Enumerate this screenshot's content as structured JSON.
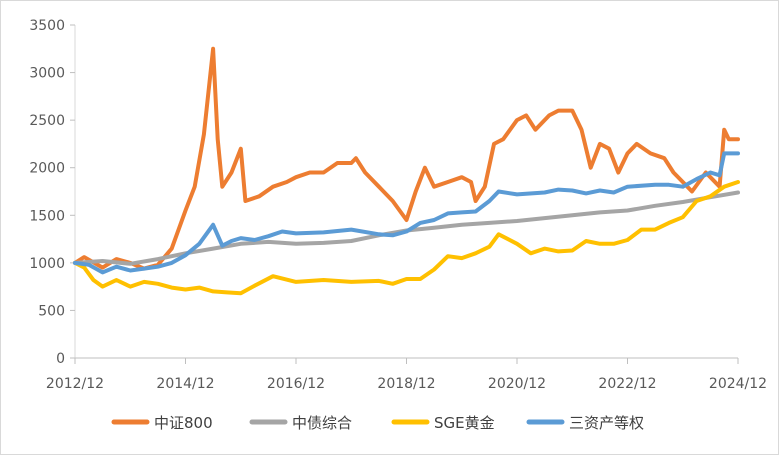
{
  "chart_data": {
    "type": "line",
    "title": "",
    "xlabel": "",
    "ylabel": "",
    "ylim": [
      0,
      3500
    ],
    "yticks": [
      0,
      500,
      1000,
      1500,
      2000,
      2500,
      3000,
      3500
    ],
    "xlim": [
      "2012/12",
      "2024/12"
    ],
    "xtick_labels": [
      "2012/12",
      "2014/12",
      "2016/12",
      "2018/12",
      "2020/12",
      "2022/12",
      "2024/12"
    ],
    "grid": "horizontal",
    "legend_position": "bottom",
    "series": [
      {
        "name": "中证800",
        "color": "#ED7D31",
        "points": [
          [
            "2012/12",
            1000
          ],
          [
            "2013/02",
            1060
          ],
          [
            "2013/06",
            950
          ],
          [
            "2013/09",
            1040
          ],
          [
            "2013/12",
            1000
          ],
          [
            "2014/03",
            940
          ],
          [
            "2014/06",
            980
          ],
          [
            "2014/09",
            1150
          ],
          [
            "2014/12",
            1550
          ],
          [
            "2015/02",
            1800
          ],
          [
            "2015/04",
            2350
          ],
          [
            "2015/06",
            3250
          ],
          [
            "2015/07",
            2300
          ],
          [
            "2015/08",
            1800
          ],
          [
            "2015/10",
            1950
          ],
          [
            "2015/12",
            2200
          ],
          [
            "2016/01",
            1650
          ],
          [
            "2016/04",
            1700
          ],
          [
            "2016/07",
            1800
          ],
          [
            "2016/10",
            1850
          ],
          [
            "2016/12",
            1900
          ],
          [
            "2017/03",
            1950
          ],
          [
            "2017/06",
            1950
          ],
          [
            "2017/09",
            2050
          ],
          [
            "2017/12",
            2050
          ],
          [
            "2018/01",
            2100
          ],
          [
            "2018/03",
            1950
          ],
          [
            "2018/06",
            1800
          ],
          [
            "2018/09",
            1650
          ],
          [
            "2018/12",
            1450
          ],
          [
            "2019/02",
            1750
          ],
          [
            "2019/04",
            2000
          ],
          [
            "2019/06",
            1800
          ],
          [
            "2019/09",
            1850
          ],
          [
            "2019/12",
            1900
          ],
          [
            "2020/02",
            1850
          ],
          [
            "2020/03",
            1650
          ],
          [
            "2020/05",
            1800
          ],
          [
            "2020/07",
            2250
          ],
          [
            "2020/09",
            2300
          ],
          [
            "2020/12",
            2500
          ],
          [
            "2021/02",
            2550
          ],
          [
            "2021/04",
            2400
          ],
          [
            "2021/07",
            2550
          ],
          [
            "2021/09",
            2600
          ],
          [
            "2021/12",
            2600
          ],
          [
            "2022/02",
            2400
          ],
          [
            "2022/04",
            2000
          ],
          [
            "2022/06",
            2250
          ],
          [
            "2022/08",
            2200
          ],
          [
            "2022/10",
            1950
          ],
          [
            "2022/12",
            2150
          ],
          [
            "2023/02",
            2250
          ],
          [
            "2023/05",
            2150
          ],
          [
            "2023/08",
            2100
          ],
          [
            "2023/10",
            1950
          ],
          [
            "2023/12",
            1850
          ],
          [
            "2024/02",
            1750
          ],
          [
            "2024/05",
            1950
          ],
          [
            "2024/08",
            1800
          ],
          [
            "2024/09",
            2400
          ],
          [
            "2024/10",
            2300
          ],
          [
            "2024/12",
            2300
          ]
        ]
      },
      {
        "name": "中债综合",
        "color": "#A5A5A5",
        "points": [
          [
            "2012/12",
            1000
          ],
          [
            "2013/06",
            1020
          ],
          [
            "2013/12",
            990
          ],
          [
            "2014/06",
            1040
          ],
          [
            "2014/12",
            1100
          ],
          [
            "2015/06",
            1150
          ],
          [
            "2015/12",
            1200
          ],
          [
            "2016/06",
            1220
          ],
          [
            "2016/12",
            1200
          ],
          [
            "2017/06",
            1210
          ],
          [
            "2017/12",
            1230
          ],
          [
            "2018/06",
            1290
          ],
          [
            "2018/12",
            1340
          ],
          [
            "2019/06",
            1370
          ],
          [
            "2019/12",
            1400
          ],
          [
            "2020/06",
            1420
          ],
          [
            "2020/12",
            1440
          ],
          [
            "2021/06",
            1470
          ],
          [
            "2021/12",
            1500
          ],
          [
            "2022/06",
            1530
          ],
          [
            "2022/12",
            1550
          ],
          [
            "2023/06",
            1600
          ],
          [
            "2023/12",
            1640
          ],
          [
            "2024/06",
            1690
          ],
          [
            "2024/12",
            1740
          ]
        ]
      },
      {
        "name": "SGE黄金",
        "color": "#FFC000",
        "points": [
          [
            "2012/12",
            1000
          ],
          [
            "2013/02",
            950
          ],
          [
            "2013/04",
            820
          ],
          [
            "2013/06",
            750
          ],
          [
            "2013/09",
            820
          ],
          [
            "2013/12",
            750
          ],
          [
            "2014/03",
            800
          ],
          [
            "2014/06",
            780
          ],
          [
            "2014/09",
            740
          ],
          [
            "2014/12",
            720
          ],
          [
            "2015/03",
            740
          ],
          [
            "2015/06",
            700
          ],
          [
            "2015/09",
            690
          ],
          [
            "2015/12",
            680
          ],
          [
            "2016/03",
            760
          ],
          [
            "2016/07",
            860
          ],
          [
            "2016/12",
            800
          ],
          [
            "2017/06",
            820
          ],
          [
            "2017/12",
            800
          ],
          [
            "2018/06",
            810
          ],
          [
            "2018/09",
            780
          ],
          [
            "2018/12",
            830
          ],
          [
            "2019/03",
            830
          ],
          [
            "2019/06",
            930
          ],
          [
            "2019/09",
            1070
          ],
          [
            "2019/12",
            1050
          ],
          [
            "2020/03",
            1100
          ],
          [
            "2020/06",
            1170
          ],
          [
            "2020/08",
            1300
          ],
          [
            "2020/12",
            1200
          ],
          [
            "2021/03",
            1100
          ],
          [
            "2021/06",
            1150
          ],
          [
            "2021/09",
            1120
          ],
          [
            "2021/12",
            1130
          ],
          [
            "2022/03",
            1230
          ],
          [
            "2022/06",
            1200
          ],
          [
            "2022/09",
            1200
          ],
          [
            "2022/12",
            1240
          ],
          [
            "2023/03",
            1350
          ],
          [
            "2023/06",
            1350
          ],
          [
            "2023/09",
            1420
          ],
          [
            "2023/12",
            1480
          ],
          [
            "2024/03",
            1650
          ],
          [
            "2024/06",
            1700
          ],
          [
            "2024/09",
            1800
          ],
          [
            "2024/12",
            1850
          ]
        ]
      },
      {
        "name": "三资产等权",
        "color": "#5B9BD5",
        "points": [
          [
            "2012/12",
            1000
          ],
          [
            "2013/03",
            980
          ],
          [
            "2013/06",
            900
          ],
          [
            "2013/09",
            960
          ],
          [
            "2013/12",
            920
          ],
          [
            "2014/03",
            940
          ],
          [
            "2014/06",
            960
          ],
          [
            "2014/09",
            1000
          ],
          [
            "2014/12",
            1080
          ],
          [
            "2015/03",
            1200
          ],
          [
            "2015/06",
            1400
          ],
          [
            "2015/08",
            1180
          ],
          [
            "2015/10",
            1230
          ],
          [
            "2015/12",
            1260
          ],
          [
            "2016/03",
            1240
          ],
          [
            "2016/06",
            1280
          ],
          [
            "2016/09",
            1330
          ],
          [
            "2016/12",
            1310
          ],
          [
            "2017/06",
            1320
          ],
          [
            "2017/12",
            1350
          ],
          [
            "2018/06",
            1300
          ],
          [
            "2018/09",
            1290
          ],
          [
            "2018/12",
            1330
          ],
          [
            "2019/03",
            1420
          ],
          [
            "2019/06",
            1450
          ],
          [
            "2019/09",
            1520
          ],
          [
            "2019/12",
            1530
          ],
          [
            "2020/03",
            1540
          ],
          [
            "2020/06",
            1650
          ],
          [
            "2020/08",
            1750
          ],
          [
            "2020/12",
            1720
          ],
          [
            "2021/06",
            1740
          ],
          [
            "2021/09",
            1770
          ],
          [
            "2021/12",
            1760
          ],
          [
            "2022/03",
            1730
          ],
          [
            "2022/06",
            1760
          ],
          [
            "2022/09",
            1740
          ],
          [
            "2022/12",
            1800
          ],
          [
            "2023/06",
            1820
          ],
          [
            "2023/09",
            1820
          ],
          [
            "2023/12",
            1800
          ],
          [
            "2024/03",
            1880
          ],
          [
            "2024/06",
            1950
          ],
          [
            "2024/08",
            1920
          ],
          [
            "2024/09",
            2150
          ],
          [
            "2024/12",
            2150
          ]
        ]
      }
    ]
  }
}
